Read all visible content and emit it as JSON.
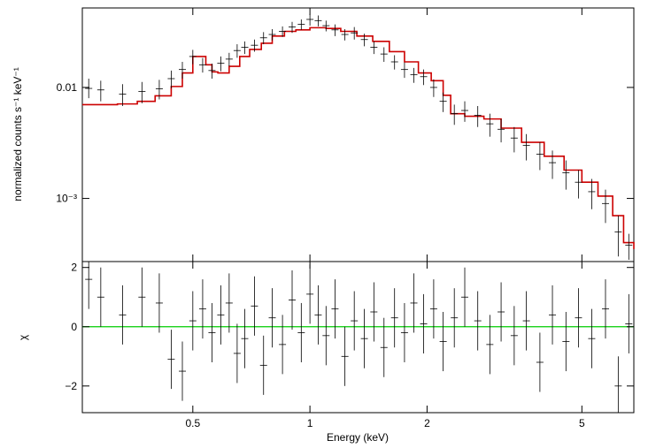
{
  "chart_data": [
    {
      "type": "step+errorbars",
      "panel": "spectrum",
      "xlabel": "",
      "ylabel": "normalized counts s⁻¹ keV⁻¹",
      "xscale": "log",
      "yscale": "log",
      "xlim": [
        0.26,
        6.8
      ],
      "ylim": [
        0.00027,
        0.052
      ],
      "yticks": [
        {
          "value": 0.01,
          "label": "0.01"
        },
        {
          "value": 0.001,
          "label": "10⁻³"
        }
      ],
      "series": [
        {
          "kind": "model",
          "color": "#cc0000",
          "points": [
            [
              0.26,
              0.007
            ],
            [
              0.32,
              0.0071
            ],
            [
              0.36,
              0.0075
            ],
            [
              0.4,
              0.0084
            ],
            [
              0.44,
              0.0102
            ],
            [
              0.47,
              0.0135
            ],
            [
              0.5,
              0.019
            ],
            [
              0.52,
              0.019
            ],
            [
              0.54,
              0.016
            ],
            [
              0.56,
              0.0138
            ],
            [
              0.58,
              0.0135
            ],
            [
              0.62,
              0.0155
            ],
            [
              0.66,
              0.019
            ],
            [
              0.7,
              0.022
            ],
            [
              0.75,
              0.025
            ],
            [
              0.8,
              0.029
            ],
            [
              0.86,
              0.032
            ],
            [
              0.92,
              0.033
            ],
            [
              1.0,
              0.0345
            ],
            [
              1.1,
              0.034
            ],
            [
              1.2,
              0.032
            ],
            [
              1.32,
              0.029
            ],
            [
              1.45,
              0.026
            ],
            [
              1.6,
              0.021
            ],
            [
              1.75,
              0.017
            ],
            [
              1.9,
              0.0135
            ],
            [
              2.05,
              0.0115
            ],
            [
              2.2,
              0.0085
            ],
            [
              2.3,
              0.0058
            ],
            [
              2.5,
              0.0055
            ],
            [
              2.8,
              0.0052
            ],
            [
              3.1,
              0.0043
            ],
            [
              3.5,
              0.0032
            ],
            [
              4.0,
              0.0024
            ],
            [
              4.5,
              0.0018
            ],
            [
              5.0,
              0.0014
            ],
            [
              5.5,
              0.00105
            ],
            [
              6.0,
              0.0007
            ],
            [
              6.4,
              0.0004
            ],
            [
              6.8,
              0.00035
            ]
          ]
        },
        {
          "kind": "data",
          "color": "#000000",
          "points": [
            [
              0.27,
              0.0098,
              0.008,
              0.012
            ],
            [
              0.29,
              0.0095,
              0.0075,
              0.0115
            ],
            [
              0.33,
              0.0087,
              0.0068,
              0.0107
            ],
            [
              0.37,
              0.0092,
              0.0072,
              0.0112
            ],
            [
              0.41,
              0.0097,
              0.0078,
              0.0117
            ],
            [
              0.44,
              0.012,
              0.0098,
              0.0142
            ],
            [
              0.47,
              0.0145,
              0.012,
              0.017
            ],
            [
              0.5,
              0.019,
              0.0162,
              0.0218
            ],
            [
              0.53,
              0.016,
              0.0136,
              0.0184
            ],
            [
              0.56,
              0.0142,
              0.012,
              0.0164
            ],
            [
              0.59,
              0.0165,
              0.014,
              0.019
            ],
            [
              0.62,
              0.018,
              0.0155,
              0.0205
            ],
            [
              0.65,
              0.0215,
              0.0185,
              0.0245
            ],
            [
              0.68,
              0.023,
              0.02,
              0.026
            ],
            [
              0.72,
              0.024,
              0.021,
              0.027
            ],
            [
              0.76,
              0.028,
              0.0245,
              0.0315
            ],
            [
              0.8,
              0.03,
              0.0265,
              0.0335
            ],
            [
              0.85,
              0.032,
              0.0285,
              0.0355
            ],
            [
              0.9,
              0.035,
              0.031,
              0.039
            ],
            [
              0.95,
              0.037,
              0.033,
              0.041
            ],
            [
              1.0,
              0.041,
              0.036,
              0.046
            ],
            [
              1.05,
              0.04,
              0.0355,
              0.0445
            ],
            [
              1.1,
              0.036,
              0.032,
              0.04
            ],
            [
              1.16,
              0.033,
              0.029,
              0.037
            ],
            [
              1.23,
              0.03,
              0.0265,
              0.0335
            ],
            [
              1.3,
              0.031,
              0.027,
              0.035
            ],
            [
              1.38,
              0.027,
              0.0235,
              0.0305
            ],
            [
              1.46,
              0.023,
              0.02,
              0.026
            ],
            [
              1.55,
              0.02,
              0.017,
              0.023
            ],
            [
              1.65,
              0.017,
              0.0145,
              0.0195
            ],
            [
              1.75,
              0.0145,
              0.0122,
              0.0168
            ],
            [
              1.85,
              0.013,
              0.011,
              0.015
            ],
            [
              1.96,
              0.0125,
              0.0105,
              0.0145
            ],
            [
              2.08,
              0.01,
              0.0082,
              0.0118
            ],
            [
              2.2,
              0.0075,
              0.006,
              0.009
            ],
            [
              2.35,
              0.0058,
              0.0046,
              0.007
            ],
            [
              2.5,
              0.0062,
              0.0049,
              0.0075
            ],
            [
              2.7,
              0.0056,
              0.0044,
              0.0068
            ],
            [
              2.9,
              0.0047,
              0.0036,
              0.0058
            ],
            [
              3.1,
              0.0042,
              0.0032,
              0.0052
            ],
            [
              3.35,
              0.0035,
              0.0026,
              0.0044
            ],
            [
              3.6,
              0.003,
              0.0022,
              0.0038
            ],
            [
              3.9,
              0.0025,
              0.0018,
              0.0032
            ],
            [
              4.2,
              0.0021,
              0.0015,
              0.0027
            ],
            [
              4.55,
              0.0017,
              0.0012,
              0.0022
            ],
            [
              4.9,
              0.0014,
              0.001,
              0.0018
            ],
            [
              5.3,
              0.00115,
              0.0008,
              0.0015
            ],
            [
              5.75,
              0.0009,
              0.0006,
              0.0012
            ],
            [
              6.2,
              0.0005,
              0.0003,
              0.0007
            ],
            [
              6.6,
              0.00038,
              0.00028,
              0.00048
            ]
          ]
        }
      ]
    },
    {
      "type": "errorbars",
      "panel": "residuals",
      "xlabel": "Energy (keV)",
      "ylabel": "χ",
      "xscale": "log",
      "xlim": [
        0.26,
        6.8
      ],
      "ylim": [
        -2.9,
        2.2
      ],
      "xticks": [
        {
          "value": 0.5,
          "label": "0.5"
        },
        {
          "value": 1,
          "label": "1"
        },
        {
          "value": 2,
          "label": "2"
        },
        {
          "value": 5,
          "label": "5"
        }
      ],
      "yticks": [
        {
          "value": 2,
          "label": "2"
        },
        {
          "value": 0,
          "label": "0"
        },
        {
          "value": -2,
          "label": "−2"
        }
      ],
      "zero_line_color": "#00cc00",
      "points": [
        [
          0.27,
          1.6
        ],
        [
          0.29,
          1.0
        ],
        [
          0.33,
          0.4
        ],
        [
          0.37,
          1.0
        ],
        [
          0.41,
          0.8
        ],
        [
          0.44,
          -1.1
        ],
        [
          0.47,
          -1.5
        ],
        [
          0.5,
          0.2
        ],
        [
          0.53,
          0.6
        ],
        [
          0.56,
          -0.2
        ],
        [
          0.59,
          0.4
        ],
        [
          0.62,
          0.8
        ],
        [
          0.65,
          -0.9
        ],
        [
          0.68,
          -0.4
        ],
        [
          0.72,
          0.7
        ],
        [
          0.76,
          -1.3
        ],
        [
          0.8,
          0.3
        ],
        [
          0.85,
          -0.6
        ],
        [
          0.9,
          0.9
        ],
        [
          0.95,
          -0.2
        ],
        [
          1.0,
          1.1
        ],
        [
          1.05,
          0.4
        ],
        [
          1.1,
          -0.3
        ],
        [
          1.16,
          0.6
        ],
        [
          1.23,
          -1.0
        ],
        [
          1.3,
          0.2
        ],
        [
          1.38,
          -0.4
        ],
        [
          1.46,
          0.5
        ],
        [
          1.55,
          -0.7
        ],
        [
          1.65,
          0.3
        ],
        [
          1.75,
          -0.2
        ],
        [
          1.85,
          0.8
        ],
        [
          1.96,
          0.1
        ],
        [
          2.08,
          0.6
        ],
        [
          2.2,
          -0.5
        ],
        [
          2.35,
          0.3
        ],
        [
          2.5,
          1.0
        ],
        [
          2.7,
          0.2
        ],
        [
          2.9,
          -0.6
        ],
        [
          3.1,
          0.5
        ],
        [
          3.35,
          -0.3
        ],
        [
          3.6,
          0.2
        ],
        [
          3.9,
          -1.2
        ],
        [
          4.2,
          0.4
        ],
        [
          4.55,
          -0.5
        ],
        [
          4.9,
          0.3
        ],
        [
          5.3,
          -0.4
        ],
        [
          5.75,
          0.6
        ],
        [
          6.2,
          -2.0
        ],
        [
          6.6,
          0.1
        ]
      ]
    }
  ]
}
